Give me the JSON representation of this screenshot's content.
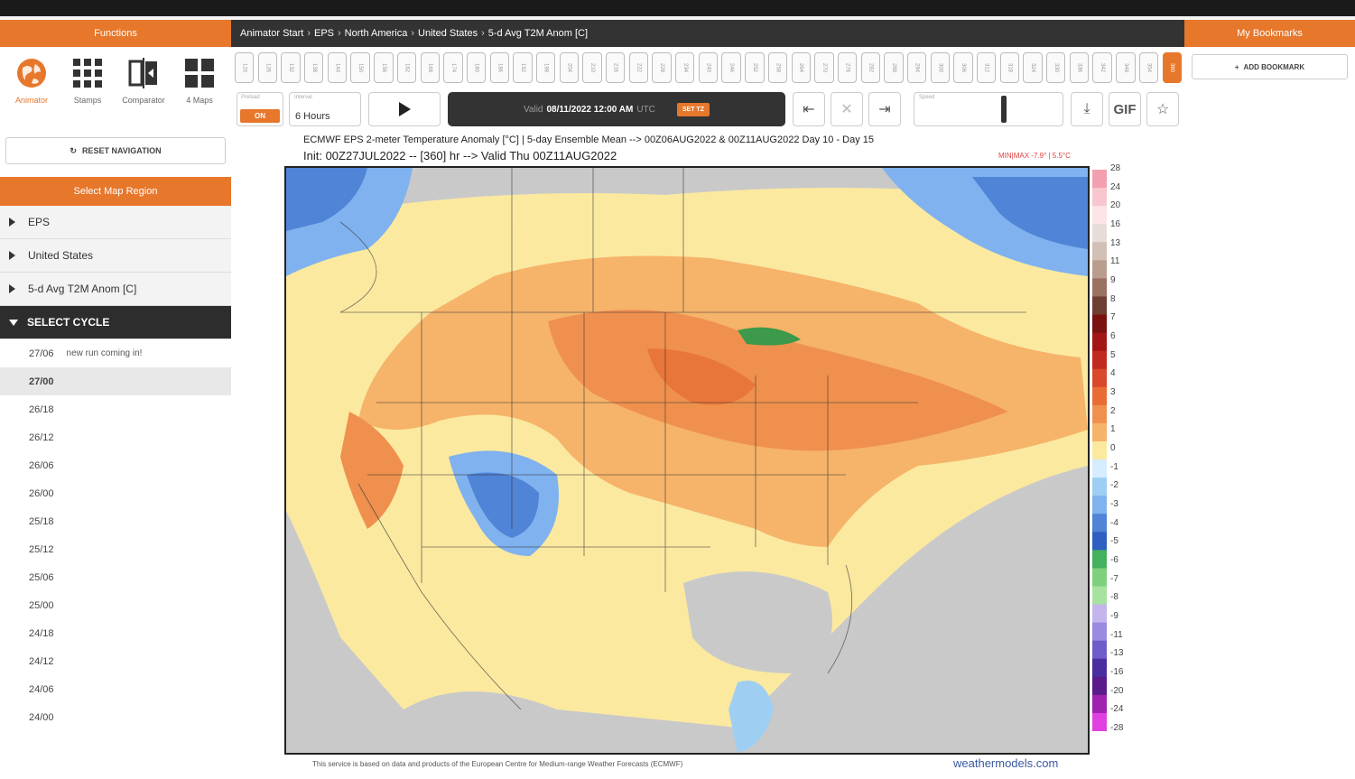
{
  "sidebar": {
    "header": "Functions",
    "functions": [
      {
        "label": "Animator",
        "icon": "globe-icon",
        "active": true
      },
      {
        "label": "Stamps",
        "icon": "grid-icon",
        "active": false
      },
      {
        "label": "Comparator",
        "icon": "compare-icon",
        "active": false
      },
      {
        "label": "4 Maps",
        "icon": "four-maps-icon",
        "active": false
      }
    ],
    "reset_label": "RESET NAVIGATION",
    "select_region_label": "Select Map Region",
    "accordion": [
      "EPS",
      "United States",
      "5-d Avg T2M Anom [C]"
    ],
    "select_cycle_label": "SELECT CYCLE",
    "cycles": [
      {
        "label": "27/06",
        "note": "new run coming in!"
      },
      {
        "label": "27/00",
        "selected": true
      },
      {
        "label": "26/18"
      },
      {
        "label": "26/12"
      },
      {
        "label": "26/06"
      },
      {
        "label": "26/00"
      },
      {
        "label": "25/18"
      },
      {
        "label": "25/12"
      },
      {
        "label": "25/06"
      },
      {
        "label": "25/00"
      },
      {
        "label": "24/18"
      },
      {
        "label": "24/12"
      },
      {
        "label": "24/06"
      },
      {
        "label": "24/00"
      }
    ]
  },
  "breadcrumb": [
    "Animator Start",
    "EPS",
    "North America",
    "United States",
    "5-d Avg T2M Anom [C]"
  ],
  "frames": [
    "120",
    "126",
    "132",
    "138",
    "144",
    "150",
    "156",
    "162",
    "168",
    "174",
    "180",
    "186",
    "192",
    "198",
    "204",
    "210",
    "216",
    "222",
    "228",
    "234",
    "240",
    "246",
    "252",
    "258",
    "264",
    "270",
    "276",
    "282",
    "288",
    "294",
    "300",
    "306",
    "312",
    "318",
    "324",
    "330",
    "336",
    "342",
    "348",
    "354",
    "360"
  ],
  "controls": {
    "preload_label": "Preload",
    "preload_value": "ON",
    "interval_label": "Interval",
    "interval_value": "6 Hours",
    "valid_prefix": "Valid",
    "valid_datetime": "08/11/2022 12:00 AM",
    "valid_tz": "UTC",
    "set_tz_label": "SET TZ",
    "speed_label": "Speed",
    "gif_label": "GIF",
    "speed_level": 0.6
  },
  "map": {
    "title_line1": "ECMWF EPS 2-meter Temperature Anomaly [°C] | 5-day Ensemble Mean --> 00Z06AUG2022 & 00Z11AUG2022   Day 10 - Day 15",
    "title_line2": "Init: 00Z27JUL2022 -- [360] hr --> Valid Thu 00Z11AUG2022",
    "minmax": "MIN|MAX -7.9° | 5.5°C",
    "footer_note": "This service is based on data and products of the European Centre for Medium-range Weather Forecasts (ECMWF)",
    "brand": "weathermodels.com",
    "colorbar_labels": [
      "28",
      "24",
      "20",
      "16",
      "13",
      "11",
      "9",
      "8",
      "7",
      "6",
      "5",
      "4",
      "3",
      "2",
      "1",
      "0",
      "-1",
      "-2",
      "-3",
      "-4",
      "-5",
      "-6",
      "-7",
      "-8",
      "-9",
      "-11",
      "-13",
      "-16",
      "-20",
      "-24",
      "-28"
    ]
  },
  "bookmarks": {
    "header": "My Bookmarks",
    "add_label": "ADD BOOKMARK"
  },
  "colors": {
    "accent": "#e7772b",
    "dark": "#333333",
    "warm_anom": "#f0904e",
    "cool_anom": "#4f84d6",
    "neutral": "#c9c9c9"
  }
}
